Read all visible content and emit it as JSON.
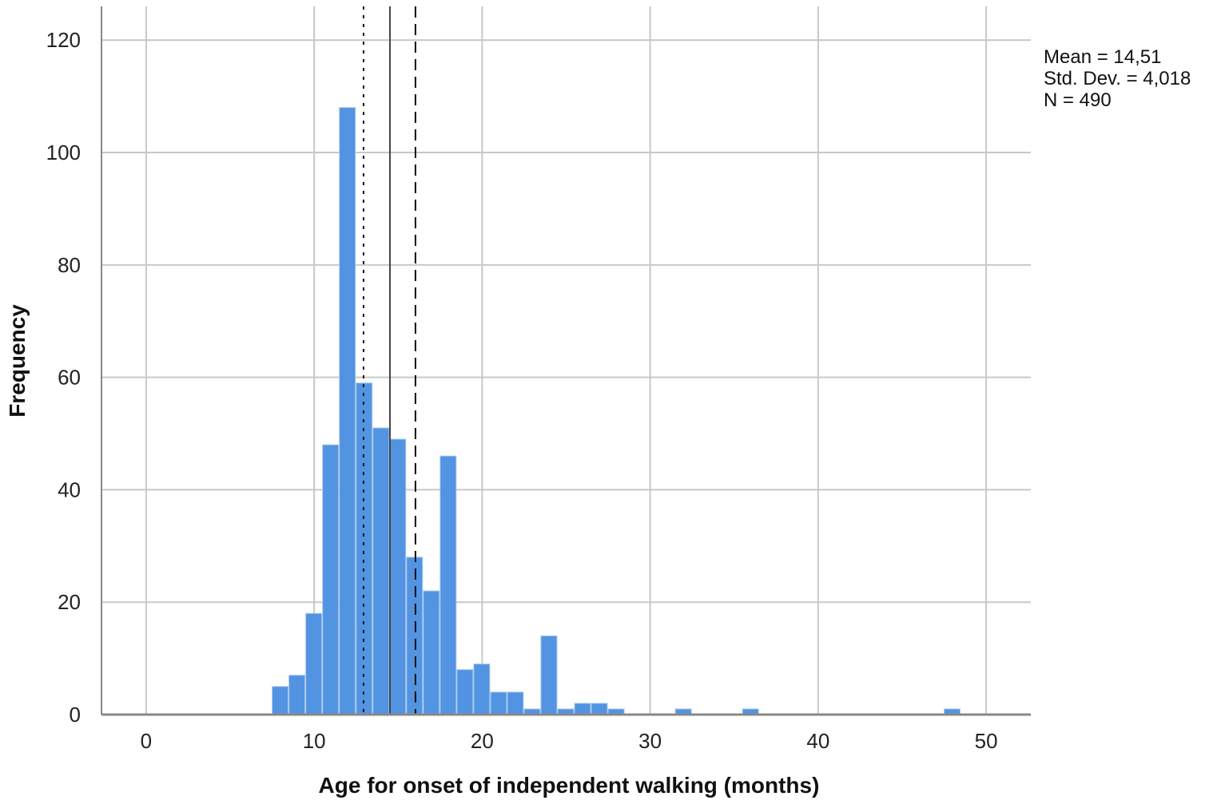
{
  "chart_data": {
    "type": "bar",
    "subtype": "histogram",
    "xlabel": "Age for onset of independent walking (months)",
    "ylabel": "Frequency",
    "xlim": [
      -2.66,
      52.66
    ],
    "ylim": [
      0,
      126
    ],
    "xticks": [
      0,
      10,
      20,
      30,
      40,
      50
    ],
    "yticks": [
      0,
      20,
      40,
      60,
      80,
      100,
      120
    ],
    "grid": true,
    "bin_width": 1,
    "bar_color": "#5294e2",
    "bins": [
      {
        "x": 8,
        "count": 5
      },
      {
        "x": 9,
        "count": 7
      },
      {
        "x": 10,
        "count": 18
      },
      {
        "x": 11,
        "count": 48
      },
      {
        "x": 12,
        "count": 108
      },
      {
        "x": 13,
        "count": 59
      },
      {
        "x": 14,
        "count": 51
      },
      {
        "x": 15,
        "count": 49
      },
      {
        "x": 16,
        "count": 28
      },
      {
        "x": 17,
        "count": 22
      },
      {
        "x": 18,
        "count": 46
      },
      {
        "x": 19,
        "count": 8
      },
      {
        "x": 20,
        "count": 9
      },
      {
        "x": 21,
        "count": 4
      },
      {
        "x": 22,
        "count": 4
      },
      {
        "x": 23,
        "count": 1
      },
      {
        "x": 24,
        "count": 14
      },
      {
        "x": 25,
        "count": 1
      },
      {
        "x": 26,
        "count": 2
      },
      {
        "x": 27,
        "count": 2
      },
      {
        "x": 28,
        "count": 1
      },
      {
        "x": 32,
        "count": 1
      },
      {
        "x": 36,
        "count": 1
      },
      {
        "x": 48,
        "count": 1
      }
    ],
    "reference_lines": [
      {
        "x": 12.94,
        "style": "dotted"
      },
      {
        "x": 14.51,
        "style": "solid"
      },
      {
        "x": 16.03,
        "style": "dashed"
      }
    ],
    "stats": {
      "mean": "Mean = 14,51",
      "std": "Std. Dev. = 4,018",
      "n": "N = 490"
    },
    "legend_placement": "right"
  }
}
